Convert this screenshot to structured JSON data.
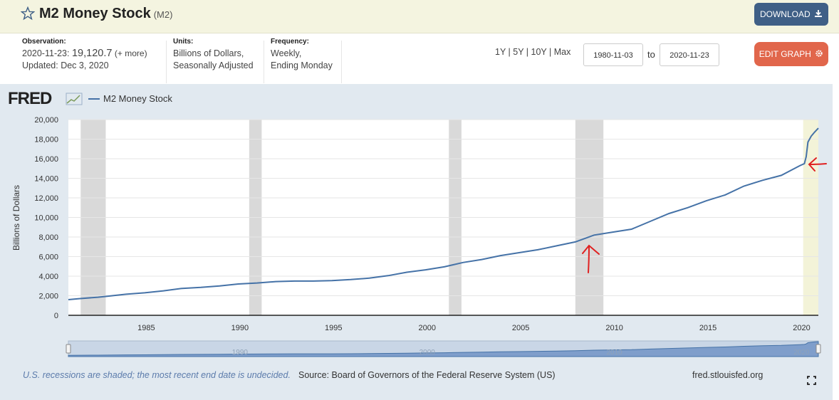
{
  "header": {
    "title": "M2 Money Stock",
    "series_code": "(M2)",
    "download_label": "DOWNLOAD",
    "edit_label": "EDIT GRAPH"
  },
  "observation": {
    "label": "Observation:",
    "date": "2020-11-23:",
    "value": "19,120.7",
    "more": "(+ more)",
    "updated": "Updated: Dec 3, 2020"
  },
  "units": {
    "label": "Units:",
    "line1": "Billions of Dollars,",
    "line2": "Seasonally Adjusted"
  },
  "frequency": {
    "label": "Frequency:",
    "line1": "Weekly,",
    "line2": "Ending Monday"
  },
  "range": {
    "presets": "1Y | 5Y | 10Y | Max",
    "start": "1980-11-03",
    "to": "to",
    "end": "2020-11-23"
  },
  "legend": {
    "logo": "FRED",
    "series": "M2 Money Stock"
  },
  "footer": {
    "note": "U.S. recessions are shaded; the most recent end date is undecided.",
    "source": "Source: Board of Governors of the Federal Reserve System (US)",
    "site": "fred.stlouisfed.org"
  },
  "colors": {
    "series": "#4572a7",
    "recession": "#d9d9d9",
    "current_recession": "#f3f3d8",
    "annotation": "#e02020"
  },
  "chart_data": {
    "type": "line",
    "title": "M2 Money Stock",
    "xlabel": "",
    "ylabel": "Billions of Dollars",
    "xlim": [
      "1980-11-03",
      "2020-11-23"
    ],
    "ylim": [
      0,
      20000
    ],
    "yticks": [
      0,
      2000,
      4000,
      6000,
      8000,
      10000,
      12000,
      14000,
      16000,
      18000,
      20000
    ],
    "ytick_labels": [
      "0",
      "2,000",
      "4,000",
      "6,000",
      "8,000",
      "10,000",
      "12,000",
      "14,000",
      "16,000",
      "18,000",
      "20,000"
    ],
    "xticks": [
      "1985",
      "1990",
      "1995",
      "2000",
      "2005",
      "2010",
      "2015",
      "2020"
    ],
    "grid": true,
    "legend": "top-left",
    "recessions": [
      [
        "1981-07-01",
        "1982-11-01"
      ],
      [
        "1990-07-01",
        "1991-03-01"
      ],
      [
        "2001-03-01",
        "2001-11-01"
      ],
      [
        "2007-12-01",
        "2009-06-01"
      ],
      [
        "2020-02-01",
        "2020-11-23"
      ]
    ],
    "series": [
      {
        "name": "M2 Money Stock",
        "x": [
          "1980-11-03",
          "1981-06-01",
          "1982-06-01",
          "1982-12-01",
          "1983-12-01",
          "1984-12-01",
          "1985-12-01",
          "1986-12-01",
          "1987-12-01",
          "1988-12-01",
          "1989-12-01",
          "1990-12-01",
          "1991-12-01",
          "1992-12-01",
          "1993-12-01",
          "1994-12-01",
          "1995-12-01",
          "1996-12-01",
          "1997-12-01",
          "1998-12-01",
          "1999-12-01",
          "2000-12-01",
          "2001-12-01",
          "2002-12-01",
          "2003-12-01",
          "2004-12-01",
          "2005-12-01",
          "2006-12-01",
          "2007-12-01",
          "2008-12-01",
          "2009-12-01",
          "2010-12-01",
          "2011-12-01",
          "2012-12-01",
          "2013-12-01",
          "2014-12-01",
          "2015-12-01",
          "2016-12-01",
          "2017-12-01",
          "2018-12-01",
          "2019-12-01",
          "2020-02-24",
          "2020-03-30",
          "2020-05-04",
          "2020-07-06",
          "2020-09-07",
          "2020-11-23"
        ],
        "y": [
          1600,
          1700,
          1850,
          1950,
          2150,
          2300,
          2500,
          2750,
          2850,
          3000,
          3200,
          3300,
          3450,
          3500,
          3500,
          3550,
          3650,
          3800,
          4050,
          4400,
          4650,
          4950,
          5400,
          5700,
          6100,
          6400,
          6700,
          7100,
          7500,
          8200,
          8500,
          8800,
          9600,
          10400,
          11000,
          11700,
          12300,
          13200,
          13800,
          14300,
          15300,
          15500,
          16200,
          17700,
          18300,
          18700,
          19120
        ]
      }
    ],
    "annotations": [
      "arrow-up-2008",
      "arrow-left-2020"
    ]
  }
}
